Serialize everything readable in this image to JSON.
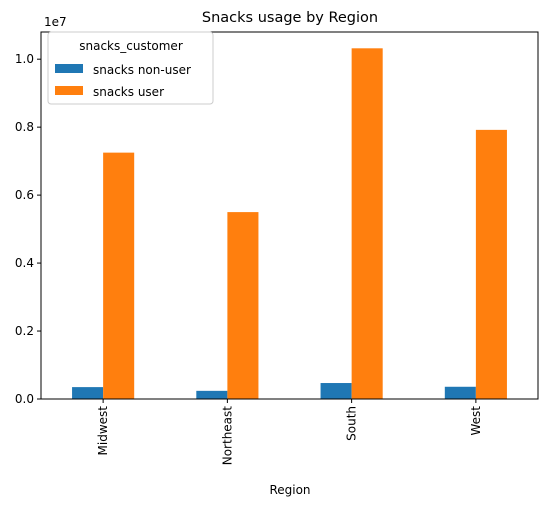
{
  "chart_data": {
    "type": "bar",
    "title": "Snacks usage by Region",
    "xlabel": "Region",
    "ylabel": "",
    "y_offset_label": "1e7",
    "ylim": [
      0,
      1.08
    ],
    "yticks": [
      0.0,
      0.2,
      0.4,
      0.6,
      0.8,
      1.0
    ],
    "ytick_labels": [
      "0.0",
      "0.2",
      "0.4",
      "0.6",
      "0.8",
      "1.0"
    ],
    "categories": [
      "Midwest",
      "Northeast",
      "South",
      "West"
    ],
    "legend_title": "snacks_customer",
    "legend_position": "top-left",
    "grid": false,
    "series": [
      {
        "name": "snacks non-user",
        "color": "#1f77b4",
        "values": [
          0.035,
          0.024,
          0.047,
          0.036
        ]
      },
      {
        "name": "snacks user",
        "color": "#ff7f0e",
        "values": [
          0.725,
          0.55,
          1.032,
          0.792
        ]
      }
    ]
  }
}
